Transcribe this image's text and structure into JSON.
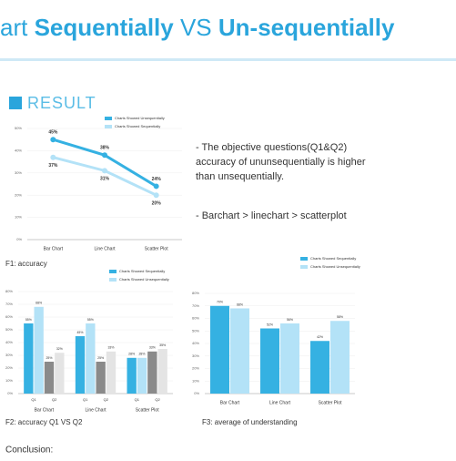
{
  "header": {
    "title_parts": [
      "art ",
      "Sequentially",
      " VS ",
      "Un-sequentially"
    ],
    "section": "RESULT"
  },
  "notes": [
    "- The objective questions(Q1&Q2)",
    "accuracy of ununsequentially is higher",
    "than unsequentially.",
    "- Barchart > linechart > scatterplot"
  ],
  "captions": [
    "F1: accuracy",
    "F2: accuracy Q1 VS Q2",
    "F3: average of understanding"
  ],
  "conclusion": "Conclusion:",
  "chart_data": [
    {
      "type": "line",
      "categories": [
        "Bar Chart",
        "Line Chart",
        "Scatter Plot"
      ],
      "series": [
        {
          "name": "Charts Showed Unsequentially",
          "color": "#35b1e2",
          "values": [
            45,
            38,
            24
          ],
          "value_labels": [
            "45%",
            "38%",
            "24%"
          ]
        },
        {
          "name": "Charts Showed Sequentially",
          "color": "#b3e2f7",
          "values": [
            37,
            31,
            20
          ],
          "value_labels": [
            "37%",
            "31%",
            "20%"
          ]
        }
      ],
      "ylim": [
        0,
        50
      ],
      "yticks": [
        {
          "value": 0,
          "label": "0%"
        },
        {
          "value": 10,
          "label": "10%"
        },
        {
          "value": 20,
          "label": "20%"
        },
        {
          "value": 30,
          "label": "30%"
        },
        {
          "value": 40,
          "label": "40%"
        },
        {
          "value": 50,
          "label": "50%"
        }
      ]
    },
    {
      "type": "bar",
      "categories": [
        "Bar Chart",
        "Line Chart",
        "Scatter Plot"
      ],
      "subcategories": [
        "Q1",
        "Q2"
      ],
      "series": [
        {
          "name": "Charts Showed Sequentially",
          "color": "#35b1e2",
          "values": [
            55,
            45,
            28
          ],
          "value_labels": [
            "55%",
            "45%",
            "28%"
          ]
        },
        {
          "name": "Charts Showed Unsequentially",
          "color": "#b3e2f7",
          "values": [
            68,
            55,
            28
          ],
          "value_labels": [
            "68%",
            "55%",
            "28%"
          ]
        },
        {
          "color": "#8a8a8a",
          "values": [
            25,
            25,
            33
          ],
          "value_labels": [
            "25%",
            "25%",
            "33%"
          ]
        },
        {
          "color": "#e4e4e4",
          "values": [
            32,
            33,
            35
          ],
          "value_labels": [
            "32%",
            "33%",
            "35%"
          ]
        }
      ],
      "ylim": [
        0,
        80
      ],
      "yticks": [
        {
          "value": 0,
          "label": "0%"
        },
        {
          "value": 10,
          "label": "10%"
        },
        {
          "value": 20,
          "label": "20%"
        },
        {
          "value": 30,
          "label": "30%"
        },
        {
          "value": 40,
          "label": "40%"
        },
        {
          "value": 50,
          "label": "50%"
        },
        {
          "value": 60,
          "label": "60%"
        },
        {
          "value": 70,
          "label": "70%"
        },
        {
          "value": 80,
          "label": "80%"
        }
      ]
    },
    {
      "type": "bar",
      "categories": [
        "Bar Chart",
        "Line Chart",
        "Scatter Plot"
      ],
      "series": [
        {
          "name": "Charts Showed Sequentially",
          "color": "#35b1e2",
          "values": [
            70,
            52,
            42
          ],
          "value_labels": [
            "70%",
            "52%",
            "42%"
          ]
        },
        {
          "name": "Charts Showed Unsequentially",
          "color": "#b3e2f7",
          "values": [
            68,
            56,
            58
          ],
          "value_labels": [
            "68%",
            "56%",
            "58%"
          ]
        }
      ],
      "ylim": [
        0,
        80
      ],
      "yticks": [
        {
          "value": 0,
          "label": "0%"
        },
        {
          "value": 10,
          "label": "10%"
        },
        {
          "value": 20,
          "label": "20%"
        },
        {
          "value": 30,
          "label": "30%"
        },
        {
          "value": 40,
          "label": "40%"
        },
        {
          "value": 50,
          "label": "50%"
        },
        {
          "value": 60,
          "label": "60%"
        },
        {
          "value": 70,
          "label": "70%"
        },
        {
          "value": 80,
          "label": "80%"
        }
      ]
    }
  ]
}
